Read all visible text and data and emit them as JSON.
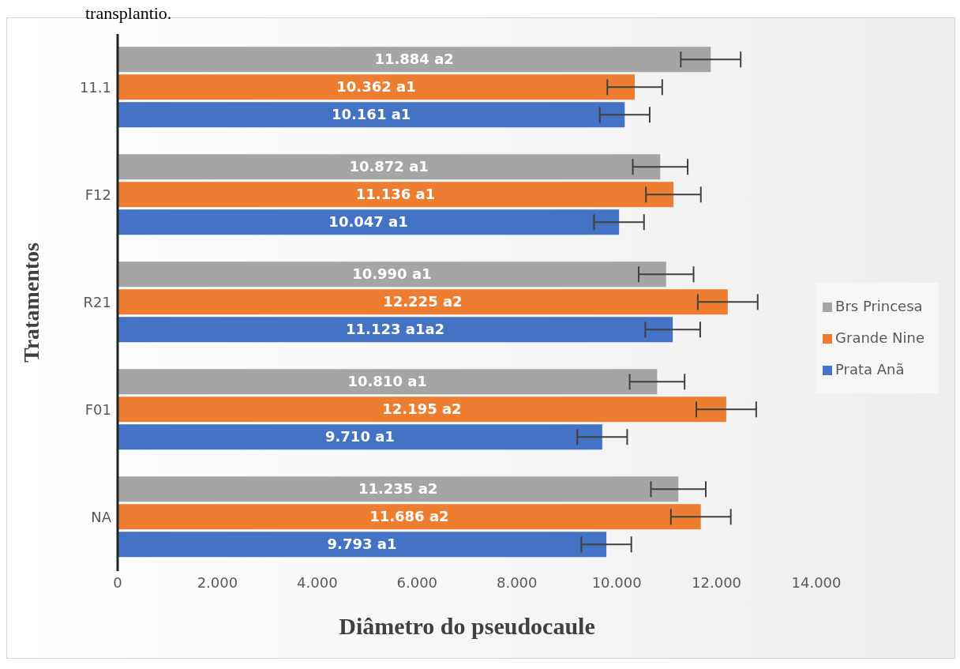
{
  "chart_data": {
    "type": "bar",
    "orientation": "horizontal",
    "xlabel": "Diâmetro do pseudocaule",
    "ylabel": "Tratamentos",
    "annotations": [
      "transplantio."
    ],
    "categories": [
      "11.1",
      "F12",
      "R21",
      "F01",
      "NA"
    ],
    "series": [
      {
        "name": "Brs Princesa",
        "color": "#a5a5a5",
        "values": [
          11.884,
          10.872,
          10.99,
          10.81,
          11.235
        ],
        "errors": [
          0.6,
          0.55,
          0.55,
          0.55,
          0.55
        ],
        "value_labels": [
          "11.884 a2",
          "10.872 a1",
          "10.990 a1",
          "10.810 a1",
          "11.235 a2"
        ]
      },
      {
        "name": "Grande Nine",
        "color": "#ed7d31",
        "values": [
          10.362,
          11.136,
          12.225,
          12.195,
          11.686
        ],
        "errors": [
          0.55,
          0.55,
          0.6,
          0.6,
          0.6
        ],
        "value_labels": [
          "10.362 a1",
          "11.136 a1",
          "12.225 a2",
          "12.195 a2",
          "11.686 a2"
        ]
      },
      {
        "name": "Prata Anã",
        "color": "#4472c4",
        "values": [
          10.161,
          10.047,
          11.123,
          9.71,
          9.793
        ],
        "errors": [
          0.5,
          0.5,
          0.55,
          0.5,
          0.5
        ],
        "value_labels": [
          "10.161 a1",
          "10.047 a1",
          "11.123 a1a2",
          "9.710 a1",
          "9.793 a1"
        ]
      }
    ],
    "xlim": [
      0,
      14
    ],
    "xticks": [
      {
        "value": 0,
        "label": "0"
      },
      {
        "value": 2,
        "label": "2.000"
      },
      {
        "value": 4,
        "label": "4.000"
      },
      {
        "value": 6,
        "label": "6.000"
      },
      {
        "value": 8,
        "label": "8.000"
      },
      {
        "value": 10,
        "label": "10.000"
      },
      {
        "value": 12,
        "label": "12.000"
      },
      {
        "value": 14,
        "label": "14.000"
      }
    ],
    "grid": false,
    "legend": "right"
  }
}
